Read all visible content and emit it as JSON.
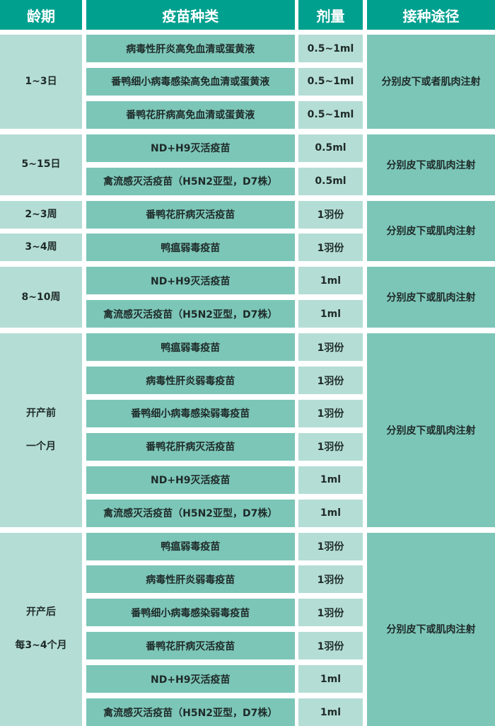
{
  "colors": {
    "header": "#00a08f",
    "light": "#b4ddd5",
    "medium": "#7cc6b8"
  },
  "headers": [
    "龄期",
    "疫苗种类",
    "剂量",
    "接种途径"
  ],
  "rows": [
    {
      "vaccine": "病毒性肝炎高免血清或蛋黄液",
      "dose": "0.5~1ml"
    },
    {
      "vaccine": "番鸭细小病毒感染高免血清或蛋黄液",
      "dose": "0.5~1ml"
    },
    {
      "vaccine": "番鸭花肝病高免血清或蛋黄液",
      "dose": "0.5~1ml"
    },
    {
      "vaccine": "ND+H9灭活疫苗",
      "dose": "0.5ml"
    },
    {
      "vaccine": "禽流感灭活疫苗（H5N2亚型，D7株）",
      "dose": "0.5ml"
    },
    {
      "vaccine": "番鸭花肝病灭活疫苗",
      "dose": "1羽份"
    },
    {
      "vaccine": "鸭瘟弱毒疫苗",
      "dose": "1羽份"
    },
    {
      "vaccine": "ND+H9灭活疫苗",
      "dose": "1ml"
    },
    {
      "vaccine": "禽流感灭活疫苗（H5N2亚型，D7株）",
      "dose": "1ml"
    },
    {
      "vaccine": "鸭瘟弱毒疫苗",
      "dose": "1羽份"
    },
    {
      "vaccine": "病毒性肝炎弱毒疫苗",
      "dose": "1羽份"
    },
    {
      "vaccine": "番鸭细小病毒感染弱毒疫苗",
      "dose": "1羽份"
    },
    {
      "vaccine": "番鸭花肝病灭活疫苗",
      "dose": "1羽份"
    },
    {
      "vaccine": "ND+H9灭活疫苗",
      "dose": "1ml"
    },
    {
      "vaccine": "禽流感灭活疫苗（H5N2亚型，D7株）",
      "dose": "1ml"
    },
    {
      "vaccine": "鸭瘟弱毒疫苗",
      "dose": "1羽份"
    },
    {
      "vaccine": "病毒性肝炎弱毒疫苗",
      "dose": "1羽份"
    },
    {
      "vaccine": "番鸭细小病毒感染弱毒疫苗",
      "dose": "1羽份"
    },
    {
      "vaccine": "番鸭花肝病灭活疫苗",
      "dose": "1羽份"
    },
    {
      "vaccine": "ND+H9灭活疫苗",
      "dose": "1ml"
    },
    {
      "vaccine": "禽流感灭活疫苗（H5N2亚型，D7株）",
      "dose": "1ml"
    }
  ],
  "age_cells": [
    {
      "lines": [
        "1~3日"
      ],
      "span": 3
    },
    {
      "lines": [
        "5~15日"
      ],
      "span": 2
    },
    {
      "lines": [
        "2~3周"
      ],
      "span": 1
    },
    {
      "lines": [
        "3~4周"
      ],
      "span": 1
    },
    {
      "lines": [
        "8~10周"
      ],
      "span": 2
    },
    {
      "lines": [
        "开产前",
        "一个月"
      ],
      "span": 6
    },
    {
      "lines": [
        "开产后",
        "每3~4个月"
      ],
      "span": 6
    }
  ],
  "route_cells": [
    {
      "text": "分别皮下或者肌肉注射",
      "span": 3
    },
    {
      "text": "分别皮下或肌肉注射",
      "span": 2
    },
    {
      "text": "分别皮下或肌肉注射",
      "span": 2
    },
    {
      "text": "分别皮下或肌肉注射",
      "span": 2
    },
    {
      "text": "分别皮下或肌肉注射",
      "span": 6
    },
    {
      "text": "分别皮下或肌肉注射",
      "span": 6
    }
  ]
}
